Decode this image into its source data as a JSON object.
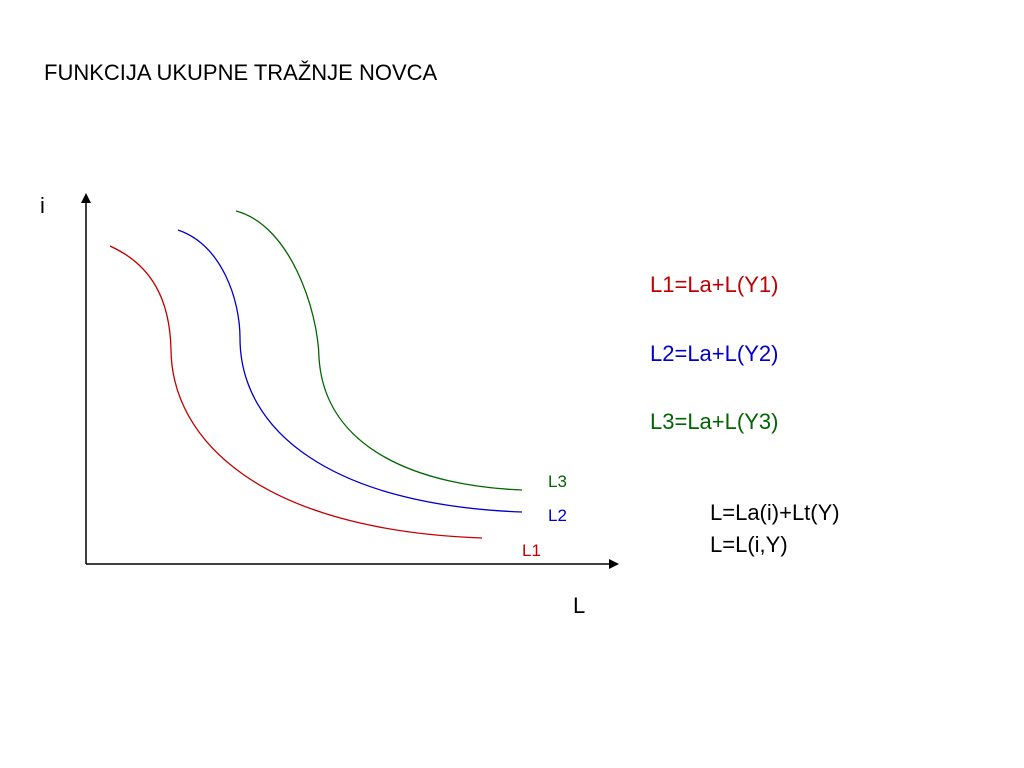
{
  "title": "FUNKCIJA UKUPNE TRAŽNJE NOVCA",
  "axes": {
    "y_label": "i",
    "x_label": "L"
  },
  "curves": [
    {
      "label": "L1",
      "color": "#c00000"
    },
    {
      "label": "L2",
      "color": "#0000cc"
    },
    {
      "label": "L3",
      "color": "#006600"
    }
  ],
  "formulas": [
    {
      "text": "L1=La+L(Y1)",
      "color": "#c00000"
    },
    {
      "text": "L2=La+L(Y2)",
      "color": "#0000cc"
    },
    {
      "text": "L3=La+L(Y3)",
      "color": "#006600"
    }
  ],
  "general": {
    "line1": "L=La(i)+Lt(Y)",
    "line2": "L=L(i,Y)"
  }
}
